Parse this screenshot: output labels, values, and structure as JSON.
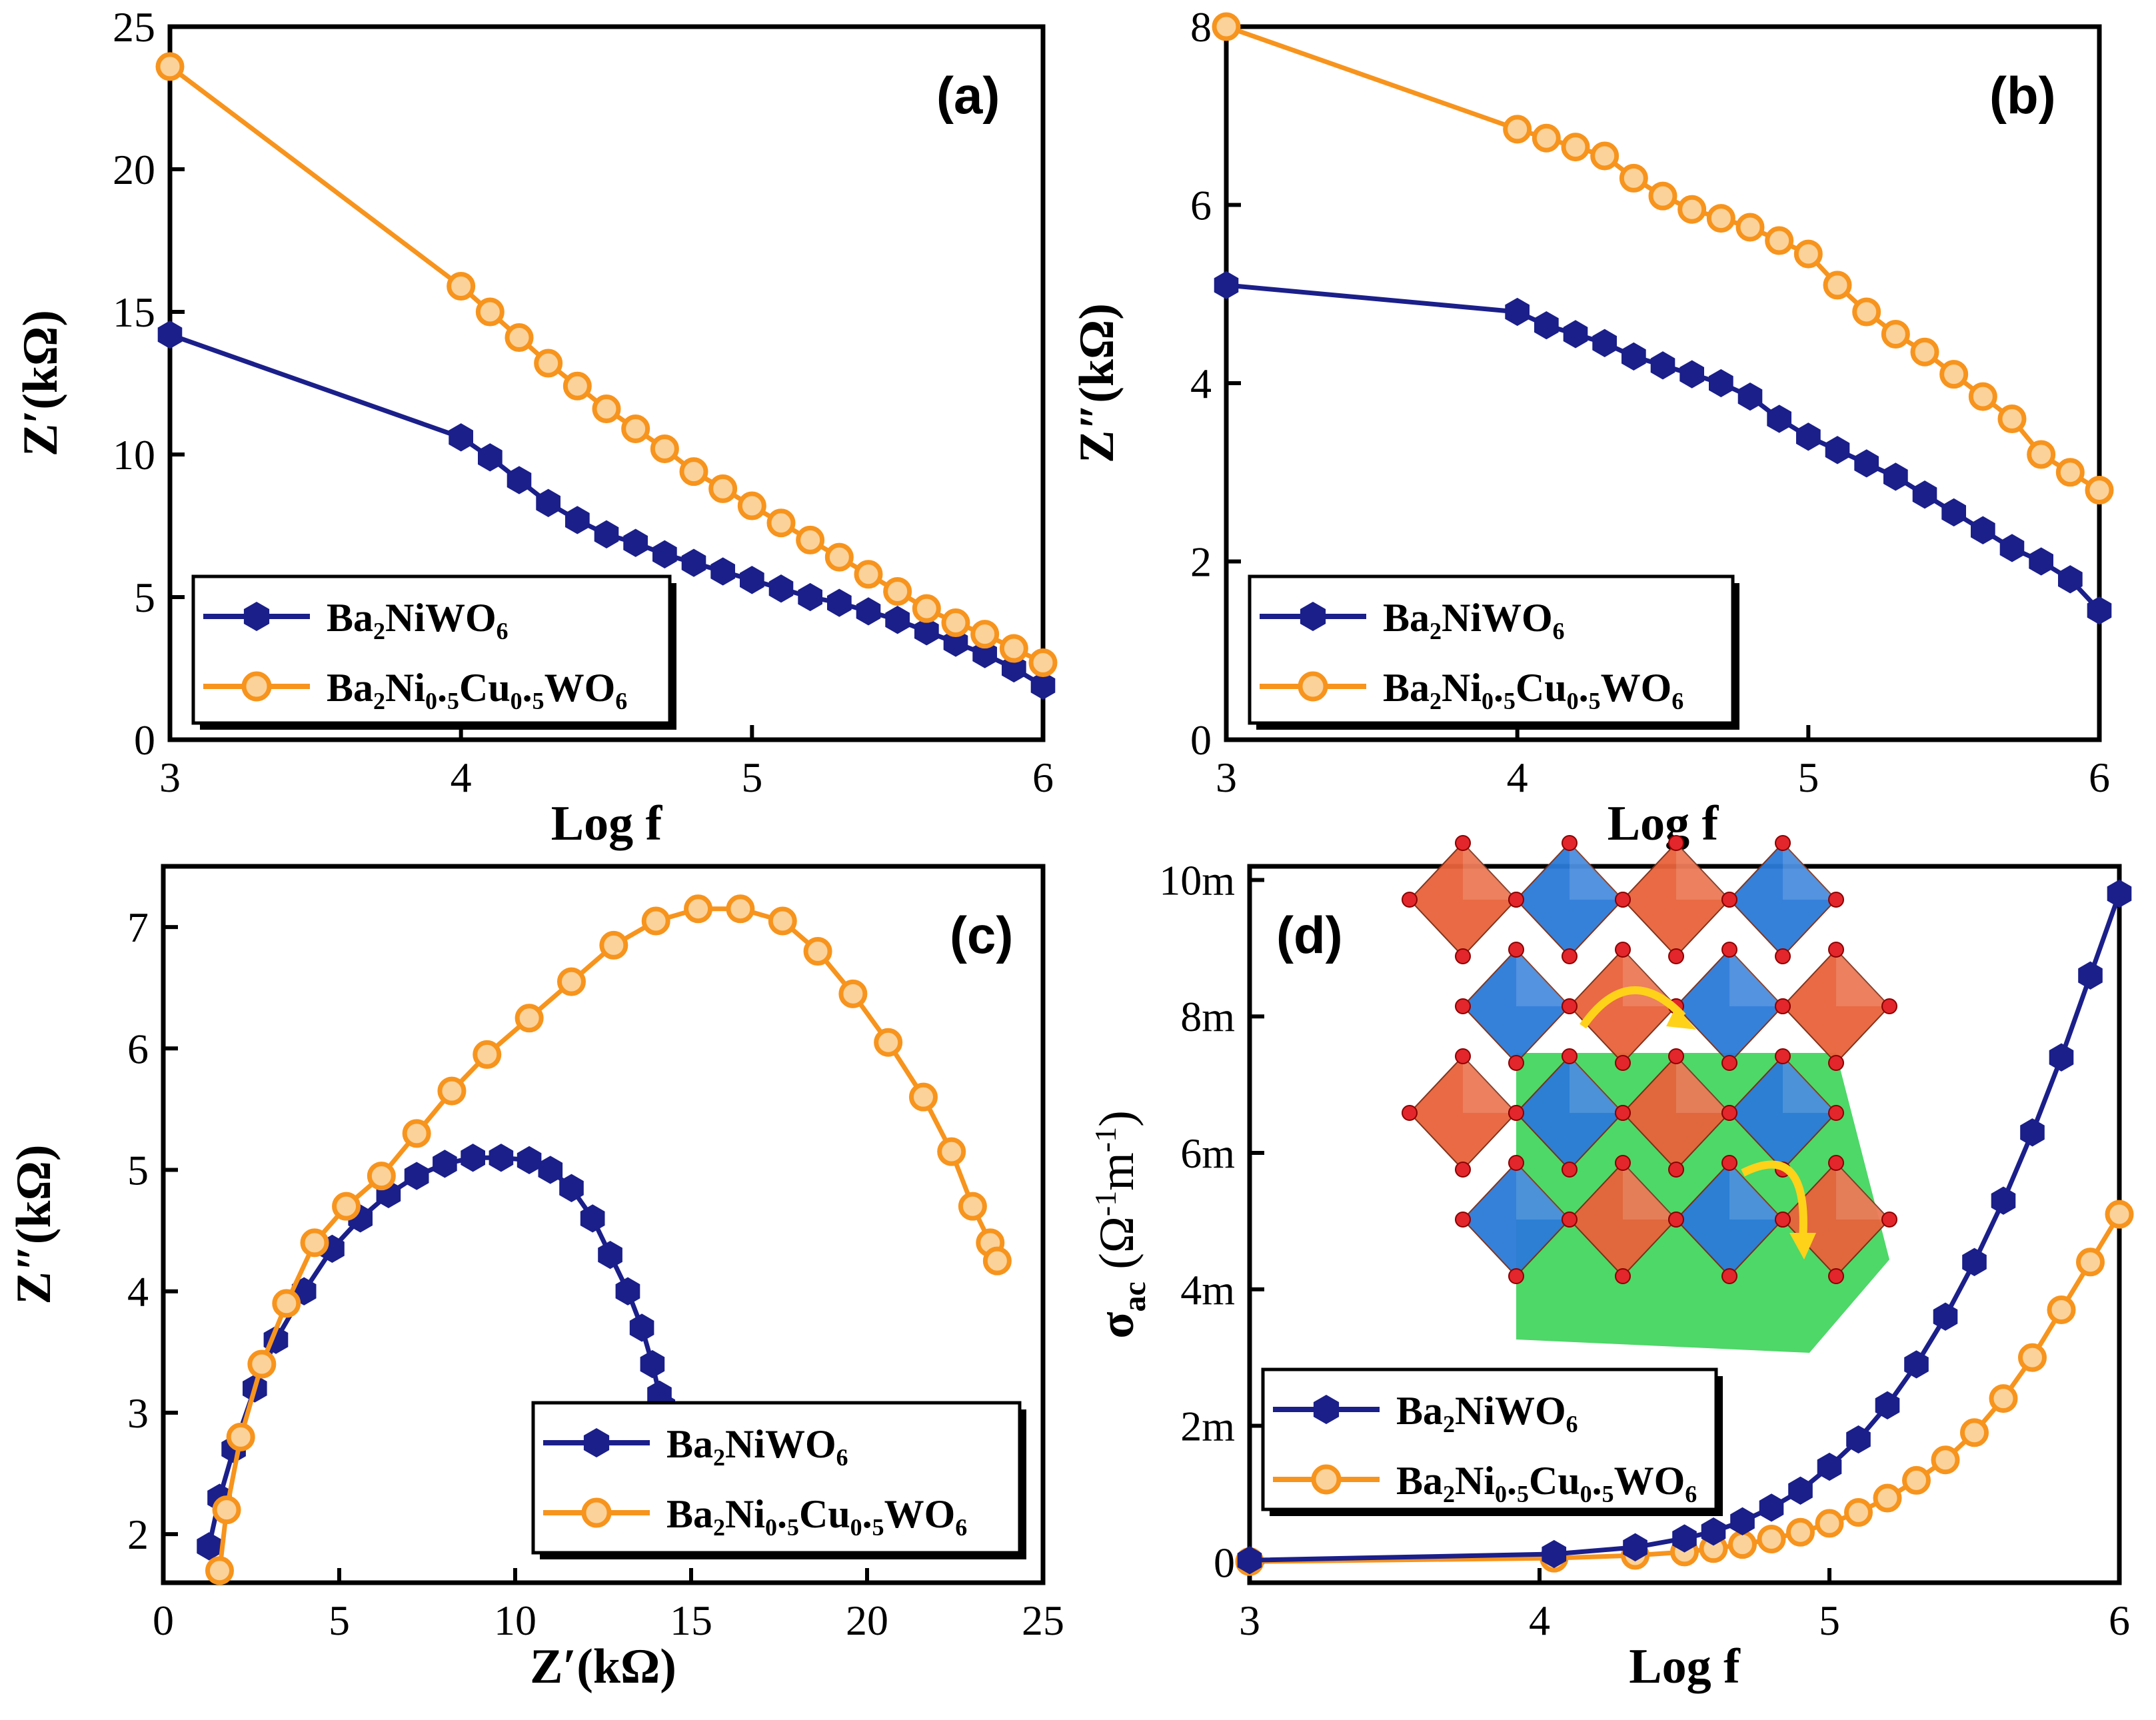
{
  "colors": {
    "series_a": "#1b1f8a",
    "series_b": "#f7941d",
    "oxygen": "#e3262b",
    "tungsten_oct": "#2b7bd9",
    "nickel_oct": "#e8633a",
    "barium_region": "#2ed14d"
  },
  "chart_data": [
    {
      "id": "a",
      "type": "line",
      "panel_label": "(a)",
      "xlabel": "Log f",
      "ylabel": "Z′(kΩ)",
      "xlim": [
        3,
        6
      ],
      "ylim": [
        0,
        25
      ],
      "xticks": [
        3,
        4,
        5,
        6
      ],
      "yticks": [
        0,
        5,
        10,
        15,
        20,
        25
      ],
      "ytick_labels": [
        "0",
        "5",
        "10",
        "15",
        "20",
        "25"
      ],
      "series": [
        {
          "name": "Ba₂NiWO₆",
          "marker": "hexagon",
          "x": [
            3.0,
            4.0,
            4.1,
            4.2,
            4.3,
            4.4,
            4.5,
            4.6,
            4.7,
            4.8,
            4.9,
            5.0,
            5.1,
            5.2,
            5.3,
            5.4,
            5.5,
            5.6,
            5.7,
            5.8,
            5.9,
            6.0
          ],
          "y": [
            14.2,
            10.6,
            9.9,
            9.1,
            8.3,
            7.7,
            7.2,
            6.9,
            6.5,
            6.2,
            5.9,
            5.6,
            5.3,
            5.0,
            4.8,
            4.5,
            4.2,
            3.8,
            3.4,
            3.0,
            2.5,
            1.9
          ]
        },
        {
          "name": "Ba₂Ni₀.₅Cu₀.₅WO₆",
          "marker": "circle",
          "x": [
            3.0,
            4.0,
            4.1,
            4.2,
            4.3,
            4.4,
            4.5,
            4.6,
            4.7,
            4.8,
            4.9,
            5.0,
            5.1,
            5.2,
            5.3,
            5.4,
            5.5,
            5.6,
            5.7,
            5.8,
            5.9,
            6.0
          ],
          "y": [
            23.6,
            15.9,
            15.0,
            14.1,
            13.2,
            12.4,
            11.6,
            10.9,
            10.2,
            9.4,
            8.8,
            8.2,
            7.6,
            7.0,
            6.4,
            5.8,
            5.2,
            4.6,
            4.1,
            3.7,
            3.2,
            2.7
          ]
        }
      ]
    },
    {
      "id": "b",
      "type": "line",
      "panel_label": "(b)",
      "xlabel": "Log f",
      "ylabel": "Z″(kΩ)",
      "xlim": [
        3,
        6
      ],
      "ylim": [
        0,
        8
      ],
      "xticks": [
        3,
        4,
        5,
        6
      ],
      "yticks": [
        0,
        2,
        4,
        6,
        8
      ],
      "ytick_labels": [
        "0",
        "2",
        "4",
        "6",
        "8"
      ],
      "series": [
        {
          "name": "Ba₂NiWO₆",
          "marker": "hexagon",
          "x": [
            3.0,
            4.0,
            4.1,
            4.2,
            4.3,
            4.4,
            4.5,
            4.6,
            4.7,
            4.8,
            4.9,
            5.0,
            5.1,
            5.2,
            5.3,
            5.4,
            5.5,
            5.6,
            5.7,
            5.8,
            5.9,
            6.0
          ],
          "y": [
            5.1,
            4.8,
            4.65,
            4.55,
            4.45,
            4.3,
            4.2,
            4.1,
            4.0,
            3.85,
            3.6,
            3.4,
            3.25,
            3.1,
            2.95,
            2.75,
            2.55,
            2.35,
            2.15,
            2.0,
            1.8,
            1.45
          ]
        },
        {
          "name": "Ba₂Ni₀.₅Cu₀.₅WO₆",
          "marker": "circle",
          "x": [
            3.0,
            4.0,
            4.1,
            4.2,
            4.3,
            4.4,
            4.5,
            4.6,
            4.7,
            4.8,
            4.9,
            5.0,
            5.1,
            5.2,
            5.3,
            5.4,
            5.5,
            5.6,
            5.7,
            5.8,
            5.9,
            6.0
          ],
          "y": [
            8.0,
            6.85,
            6.75,
            6.65,
            6.55,
            6.3,
            6.1,
            5.95,
            5.85,
            5.75,
            5.6,
            5.45,
            5.1,
            4.8,
            4.55,
            4.35,
            4.1,
            3.85,
            3.6,
            3.2,
            3.0,
            2.8
          ]
        }
      ]
    },
    {
      "id": "c",
      "type": "scatter",
      "panel_label": "(c)",
      "xlabel": "Z′(kΩ)",
      "ylabel": "Z″(kΩ)",
      "xlim": [
        0,
        25
      ],
      "ylim": [
        1.6,
        7.5
      ],
      "xticks": [
        0,
        5,
        10,
        15,
        20,
        25
      ],
      "yticks": [
        2,
        3,
        4,
        5,
        6,
        7
      ],
      "ytick_labels": [
        "2",
        "3",
        "4",
        "5",
        "6",
        "7"
      ],
      "series": [
        {
          "name": "Ba₂NiWO₆",
          "marker": "hexagon",
          "x": [
            1.3,
            1.6,
            2.0,
            2.6,
            3.2,
            4.0,
            4.8,
            5.6,
            6.4,
            7.2,
            8.0,
            8.8,
            9.6,
            10.4,
            11.0,
            11.6,
            12.2,
            12.7,
            13.2,
            13.6,
            13.9,
            14.1,
            14.2
          ],
          "y": [
            1.9,
            2.3,
            2.7,
            3.2,
            3.6,
            4.0,
            4.35,
            4.6,
            4.8,
            4.95,
            5.05,
            5.1,
            5.1,
            5.08,
            5.0,
            4.85,
            4.6,
            4.3,
            4.0,
            3.7,
            3.4,
            3.15,
            3.05
          ]
        },
        {
          "name": "Ba₂Ni₀.₅Cu₀.₅WO₆",
          "marker": "circle",
          "x": [
            1.6,
            1.8,
            2.2,
            2.8,
            3.5,
            4.3,
            5.2,
            6.2,
            7.2,
            8.2,
            9.2,
            10.4,
            11.6,
            12.8,
            14.0,
            15.2,
            16.4,
            17.6,
            18.6,
            19.6,
            20.6,
            21.6,
            22.4,
            23.0,
            23.5,
            23.7
          ],
          "y": [
            1.7,
            2.2,
            2.8,
            3.4,
            3.9,
            4.4,
            4.7,
            4.95,
            5.3,
            5.65,
            5.95,
            6.25,
            6.55,
            6.85,
            7.05,
            7.15,
            7.15,
            7.05,
            6.8,
            6.45,
            6.05,
            5.6,
            5.15,
            4.7,
            4.4,
            4.25
          ]
        }
      ]
    },
    {
      "id": "d",
      "type": "line",
      "panel_label": "(d)",
      "xlabel": "Log f",
      "ylabel": "σ",
      "ylabel_sub": "ac",
      "ylabel_unit": " (Ω",
      "ylabel_unit_sup1": "-1",
      "ylabel_unit_mid": "m",
      "ylabel_unit_sup2": "-1",
      "ylabel_unit_end": ")",
      "xlim": [
        3,
        6
      ],
      "ylim": [
        -0.0003,
        0.0102
      ],
      "xticks": [
        3,
        4,
        5,
        6
      ],
      "yticks": [
        0,
        0.002,
        0.004,
        0.006,
        0.008,
        0.01
      ],
      "ytick_labels": [
        "0",
        "2m",
        "4m",
        "6m",
        "8m",
        "10m"
      ],
      "series": [
        {
          "name": "Ba₂NiWO₆",
          "marker": "hexagon",
          "x": [
            3.0,
            4.05,
            4.33,
            4.5,
            4.6,
            4.7,
            4.8,
            4.9,
            5.0,
            5.1,
            5.2,
            5.3,
            5.4,
            5.5,
            5.6,
            5.7,
            5.8,
            5.9,
            6.0
          ],
          "y": [
            3e-05,
            0.00012,
            0.00022,
            0.00035,
            0.00045,
            0.0006,
            0.0008,
            0.00105,
            0.0014,
            0.0018,
            0.0023,
            0.0029,
            0.0036,
            0.0044,
            0.0053,
            0.0063,
            0.0074,
            0.0086,
            0.0098
          ]
        },
        {
          "name": "Ba₂Ni₀.₅Cu₀.₅WO₆",
          "marker": "circle",
          "x": [
            3.0,
            4.05,
            4.33,
            4.5,
            4.6,
            4.7,
            4.8,
            4.9,
            5.0,
            5.1,
            5.2,
            5.3,
            5.4,
            5.5,
            5.6,
            5.7,
            5.8,
            5.9,
            6.0
          ],
          "y": [
            1e-05,
            6e-05,
            0.0001,
            0.00015,
            0.0002,
            0.00026,
            0.00034,
            0.00044,
            0.00057,
            0.00073,
            0.00094,
            0.0012,
            0.0015,
            0.0019,
            0.0024,
            0.003,
            0.0037,
            0.0044,
            0.0051
          ]
        }
      ]
    }
  ]
}
